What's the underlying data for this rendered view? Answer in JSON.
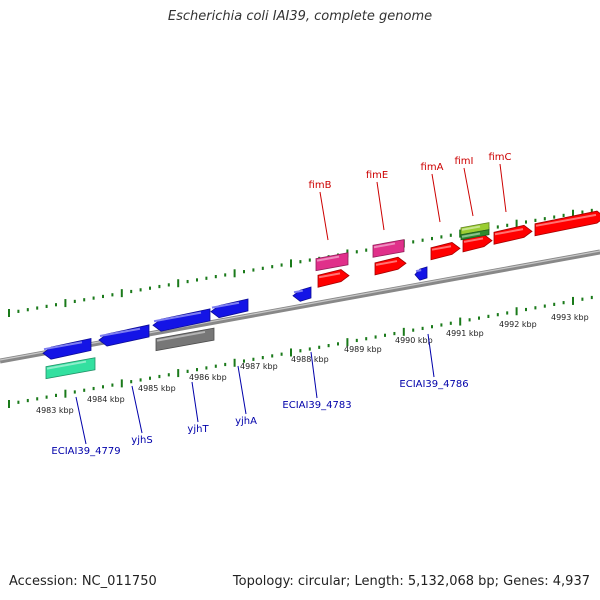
{
  "title": "Escherichia coli IAI39, complete genome",
  "footer": {
    "accession": "Accession: NC_011750",
    "summary": "Topology: circular; Length: 5,132,068 bp; Genes: 4,937"
  },
  "colors": {
    "backbone": "#888888",
    "ticks": "#1a7a1a",
    "forward_gene": "#ff0000",
    "reverse_gene": "#1414e6",
    "pseudo_gene": "#777777",
    "rna_gene": "#e0308a",
    "other_gene": "#33e0a0",
    "mobile_element": "#9acd32",
    "label_forward": "#cc0000",
    "label_reverse": "#0000aa"
  },
  "scale_labels": [
    "4983 kbp",
    "4984 kbp",
    "4985 kbp",
    "4986 kbp",
    "4987 kbp",
    "4988 kbp",
    "4989 kbp",
    "4990 kbp",
    "4991 kbp",
    "4992 kbp",
    "4993 kbp"
  ],
  "gene_labels_forward": [
    "fimB",
    "fimE",
    "fimA",
    "fimI",
    "fimC"
  ],
  "gene_labels_reverse": [
    "ECIAI39_4779",
    "yjhS",
    "yjhT",
    "yjhA",
    "ECIAI39_4783",
    "ECIAI39_4786"
  ]
}
